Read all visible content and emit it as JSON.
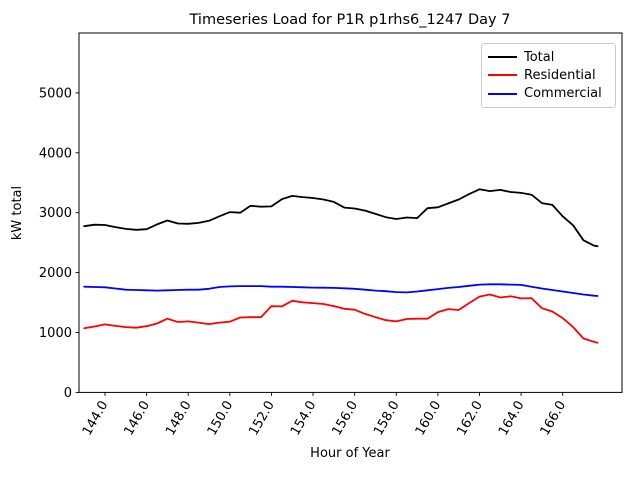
{
  "chart_data": {
    "type": "line",
    "title": "Timeseries Load for P1R p1rhs6_1247  Day 7",
    "xlabel": "Hour of Year",
    "ylabel": "kW total",
    "xlim": [
      142.75,
      168.85
    ],
    "ylim": [
      0,
      6000
    ],
    "grid": false,
    "legend_position": "upper right",
    "x_tick_values": [
      144,
      146,
      148,
      150,
      152,
      154,
      156,
      158,
      160,
      162,
      164,
      166
    ],
    "x_tick_labels": [
      "144.0",
      "146.0",
      "148.0",
      "150.0",
      "152.0",
      "154.0",
      "156.0",
      "158.0",
      "160.0",
      "162.0",
      "164.0",
      "166.0"
    ],
    "y_tick_values": [
      0,
      1000,
      2000,
      3000,
      4000,
      5000
    ],
    "y_tick_labels": [
      "0",
      "1000",
      "2000",
      "3000",
      "4000",
      "5000"
    ],
    "x": [
      143.0,
      143.5,
      144.0,
      144.5,
      145.0,
      145.5,
      146.0,
      146.5,
      147.0,
      147.5,
      148.0,
      148.5,
      149.0,
      149.5,
      150.0,
      150.5,
      151.0,
      151.5,
      152.0,
      152.5,
      153.0,
      153.5,
      154.0,
      154.5,
      155.0,
      155.5,
      156.0,
      156.5,
      157.0,
      157.5,
      158.0,
      158.5,
      159.0,
      159.5,
      160.0,
      160.5,
      161.0,
      161.5,
      162.0,
      162.5,
      163.0,
      163.5,
      164.0,
      164.5,
      165.0,
      165.5,
      166.0,
      166.5,
      167.0,
      167.5,
      167.67
    ],
    "series": [
      {
        "name": "Total",
        "color": "#000000",
        "values": [
          2775,
          2800,
          2795,
          2760,
          2730,
          2715,
          2725,
          2805,
          2870,
          2820,
          2815,
          2830,
          2865,
          2940,
          3010,
          3000,
          3115,
          3100,
          3105,
          3225,
          3280,
          3260,
          3245,
          3220,
          3180,
          3085,
          3070,
          3035,
          2980,
          2925,
          2895,
          2920,
          2910,
          3075,
          3090,
          3155,
          3220,
          3310,
          3390,
          3360,
          3380,
          3345,
          3330,
          3300,
          3160,
          3130,
          2940,
          2790,
          2540,
          2450,
          2440
        ]
      },
      {
        "name": "Residential",
        "color": "#ff0000",
        "values": [
          1070,
          1100,
          1135,
          1110,
          1090,
          1080,
          1105,
          1150,
          1230,
          1175,
          1185,
          1165,
          1140,
          1165,
          1180,
          1250,
          1255,
          1255,
          1440,
          1435,
          1530,
          1505,
          1490,
          1475,
          1440,
          1395,
          1380,
          1310,
          1255,
          1205,
          1185,
          1225,
          1230,
          1230,
          1340,
          1390,
          1375,
          1490,
          1600,
          1635,
          1585,
          1605,
          1570,
          1575,
          1405,
          1350,
          1240,
          1090,
          900,
          845,
          830
        ]
      },
      {
        "name": "Commercial",
        "color": "#0000ff",
        "values": [
          1765,
          1760,
          1755,
          1735,
          1715,
          1710,
          1705,
          1700,
          1705,
          1710,
          1715,
          1715,
          1730,
          1760,
          1770,
          1775,
          1775,
          1775,
          1765,
          1765,
          1760,
          1755,
          1750,
          1748,
          1745,
          1738,
          1730,
          1715,
          1700,
          1690,
          1675,
          1670,
          1685,
          1705,
          1725,
          1745,
          1760,
          1780,
          1800,
          1805,
          1805,
          1800,
          1795,
          1765,
          1735,
          1710,
          1685,
          1660,
          1635,
          1615,
          1610
        ]
      }
    ]
  }
}
